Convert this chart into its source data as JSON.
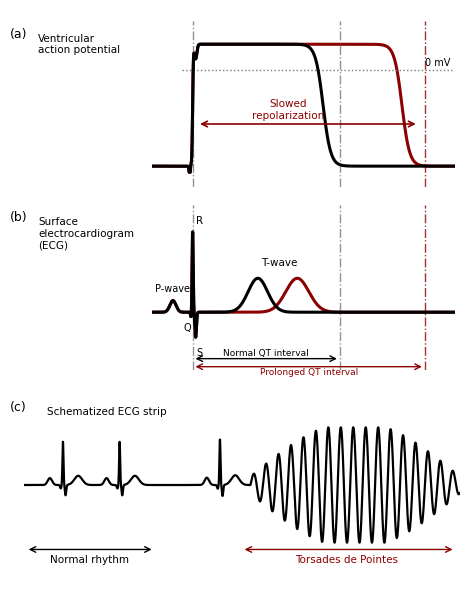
{
  "panel_a_label": "(a)",
  "panel_b_label": "(b)",
  "panel_c_label": "(c)",
  "panel_a_title": "Ventricular\naction potential",
  "panel_b_title": "Surface\nelectrocardiogram\n(ECG)",
  "panel_c_title": "Schematized ECG strip",
  "label_0mV": "0 mV",
  "label_slowed": "Slowed\nrepolarization",
  "label_pwave": "P-wave",
  "label_twave": "T-wave",
  "label_R": "R",
  "label_Q": "Q",
  "label_S": "S",
  "label_normal_qt": "Normal QT interval",
  "label_prolonged_qt": "Prolonged QT interval",
  "label_normal_rhythm": "Normal rhythm",
  "label_tdp": "Torsades de Pointes",
  "black": "#000000",
  "dark_red": "#8B0000",
  "gray": "#777777",
  "dot_color": "#777777",
  "bg_color": "#ffffff"
}
